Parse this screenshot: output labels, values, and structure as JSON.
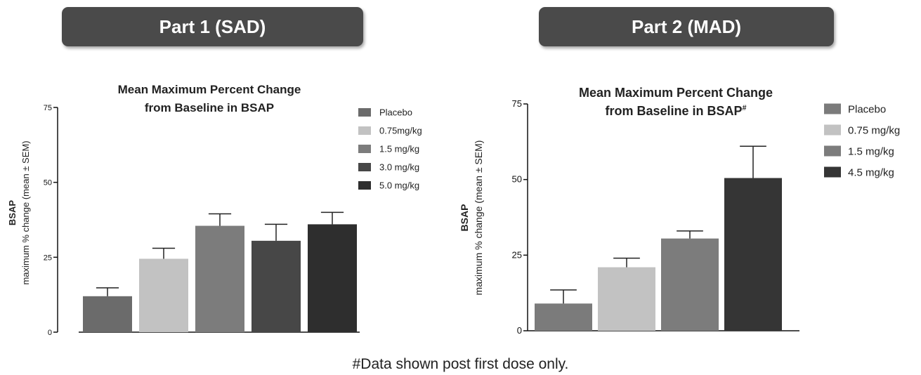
{
  "panels": [
    {
      "banner": "Part 1 (SAD)"
    },
    {
      "banner": "Part 2 (MAD)"
    }
  ],
  "footnote": "#Data shown post first dose only.",
  "chart_data": [
    {
      "type": "bar",
      "title": [
        "Mean Maximum Percent Change",
        "from Baseline in BSAP"
      ],
      "title_superscript": "",
      "ylabel": [
        "BSAP",
        "maximum % change (mean ± SEM)"
      ],
      "xlabel": "",
      "ylim": [
        0,
        75
      ],
      "yticks": [
        0,
        25,
        50,
        75
      ],
      "categories": [
        "Placebo",
        "0.75mg/kg",
        "1.5 mg/kg",
        "3.0 mg/kg",
        "5.0 mg/kg"
      ],
      "values": [
        12,
        24.5,
        35.5,
        30.5,
        36
      ],
      "errors": [
        2.8,
        3.5,
        4,
        5.5,
        4
      ],
      "colors": [
        "#6b6b6b",
        "#c2c2c2",
        "#7c7c7c",
        "#474747",
        "#2e2e2e"
      ],
      "legend_position": "right",
      "grid": false
    },
    {
      "type": "bar",
      "title": [
        "Mean Maximum Percent Change",
        "from Baseline in BSAP"
      ],
      "title_superscript": "#",
      "ylabel": [
        "BSAP",
        "maximum % change (mean ± SEM)"
      ],
      "xlabel": "",
      "ylim": [
        0,
        75
      ],
      "yticks": [
        0,
        25,
        50,
        75
      ],
      "categories": [
        "Placebo",
        "0.75 mg/kg",
        "1.5 mg/kg",
        "4.5 mg/kg"
      ],
      "values": [
        9,
        21,
        30.5,
        50.5
      ],
      "errors": [
        4.5,
        3,
        2.5,
        10.5
      ],
      "colors": [
        "#7b7b7b",
        "#c2c2c2",
        "#7c7c7c",
        "#353535"
      ],
      "legend_position": "right",
      "grid": false
    }
  ]
}
